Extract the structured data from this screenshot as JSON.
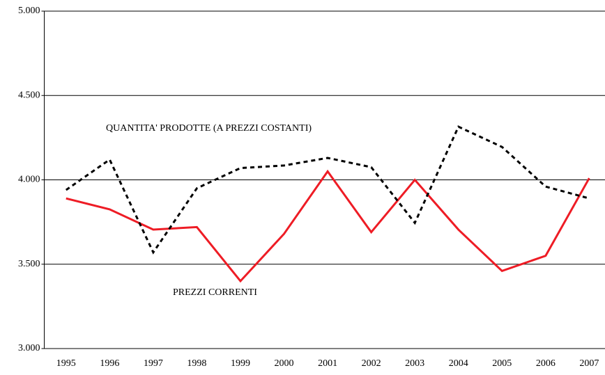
{
  "chart_data": {
    "type": "line",
    "categories": [
      "1995",
      "1996",
      "1997",
      "1998",
      "1999",
      "2000",
      "2001",
      "2002",
      "2003",
      "2004",
      "2005",
      "2006",
      "2007"
    ],
    "series": [
      {
        "name": "PREZZI CORRENTI",
        "color": "#ee1c25",
        "dash": false,
        "values": [
          3890,
          3825,
          3705,
          3720,
          3400,
          3680,
          4050,
          3690,
          4000,
          3705,
          3460,
          3550,
          4010
        ]
      },
      {
        "name": "QUANTITA' PRODOTTE (A PREZZI COSTANTI)",
        "color": "#000000",
        "dash": true,
        "values": [
          3940,
          4120,
          3570,
          3950,
          4070,
          4085,
          4130,
          4075,
          3745,
          4315,
          4195,
          3960,
          3890
        ]
      }
    ],
    "ylim": [
      3000,
      5000
    ],
    "yticks": [
      {
        "value": 3000,
        "label": "3.000"
      },
      {
        "value": 3500,
        "label": "3.500"
      },
      {
        "value": 4000,
        "label": "4.000"
      },
      {
        "value": 4500,
        "label": "4.500"
      },
      {
        "value": 5000,
        "label": "5.000"
      }
    ],
    "grid": true
  }
}
